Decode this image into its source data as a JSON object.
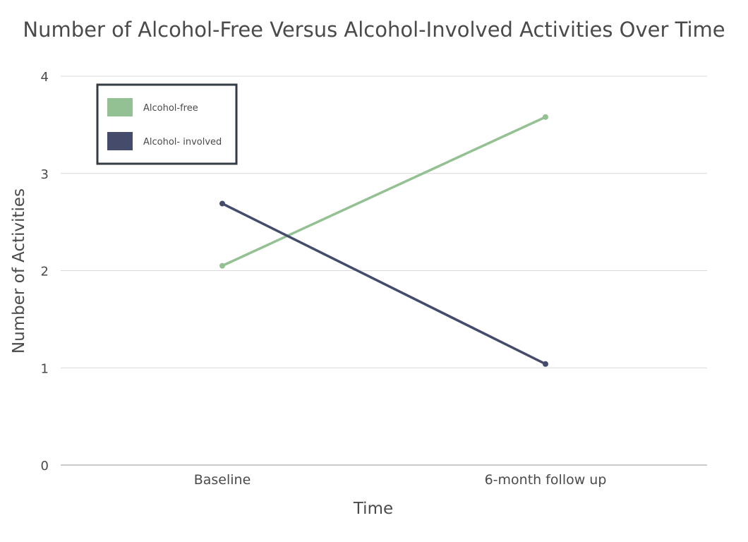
{
  "chart_data": {
    "type": "line",
    "title": "Number of Alcohol-Free Versus Alcohol-Involved Activities Over Time",
    "xlabel": "Time",
    "ylabel": "Number of Activities",
    "categories": [
      "Baseline",
      "6-month follow up"
    ],
    "ylim": [
      0,
      4
    ],
    "yticks": [
      "0",
      "1",
      "2",
      "3",
      "4"
    ],
    "grid": true,
    "legend_position": "top-left",
    "series": [
      {
        "name": "Alcohol-free",
        "color": "#93c193",
        "values": [
          2.05,
          3.58
        ]
      },
      {
        "name": "Alcohol- involved",
        "color": "#444b6b",
        "values": [
          2.69,
          1.04
        ]
      }
    ]
  }
}
